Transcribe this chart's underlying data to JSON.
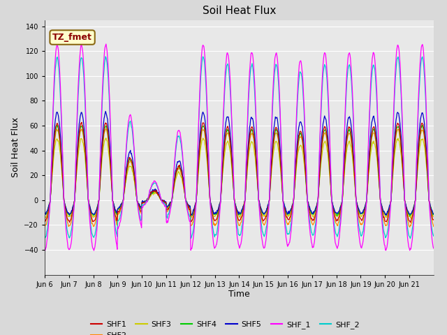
{
  "title": "Soil Heat Flux",
  "xlabel": "Time",
  "ylabel": "Soil Heat Flux",
  "ylim": [
    -60,
    145
  ],
  "yticks": [
    -40,
    -20,
    0,
    20,
    40,
    60,
    80,
    100,
    120,
    140
  ],
  "figsize": [
    6.4,
    4.8
  ],
  "dpi": 100,
  "annotation_text": "TZ_fmet",
  "series_colors": {
    "SHF1": "#cc0000",
    "SHF2": "#ff8800",
    "SHF3": "#cccc00",
    "SHF4": "#00cc00",
    "SHF5": "#0000cc",
    "SHF_1": "#ff00ff",
    "SHF_2": "#00cccc"
  },
  "bg_color": "#e8e8e8",
  "grid_color": "#ffffff",
  "xtick_labels": [
    "Jun 6",
    "Jun 7",
    "Jun 8",
    "Jun 9",
    "Jun 10",
    "Jun 11",
    "Jun 12",
    "Jun 13",
    "Jun 14",
    "Jun 15",
    "Jun 16",
    "Jun 17",
    "Jun 18",
    "Jun 19",
    "Jun 20",
    "Jun 21"
  ],
  "n_days": 16,
  "points_per_day": 48,
  "amp_variation": [
    1.0,
    1.0,
    1.0,
    0.55,
    0.12,
    0.45,
    1.0,
    0.95,
    0.95,
    0.95,
    0.9,
    0.95,
    0.95,
    0.95,
    1.0,
    1.0
  ],
  "amp_SHF1": 62,
  "neg_SHF1": 17,
  "amp_SHF2": 60,
  "neg_SHF2": 19,
  "amp_SHF3": 55,
  "neg_SHF3": 15,
  "amp_SHF4": 65,
  "neg_SHF4": 14,
  "amp_SHF5": 72,
  "neg_SHF5": 14,
  "amp_SHF_1": 125,
  "neg_SHF_1": 40,
  "amp_SHF_2": 115,
  "neg_SHF_2": 30
}
